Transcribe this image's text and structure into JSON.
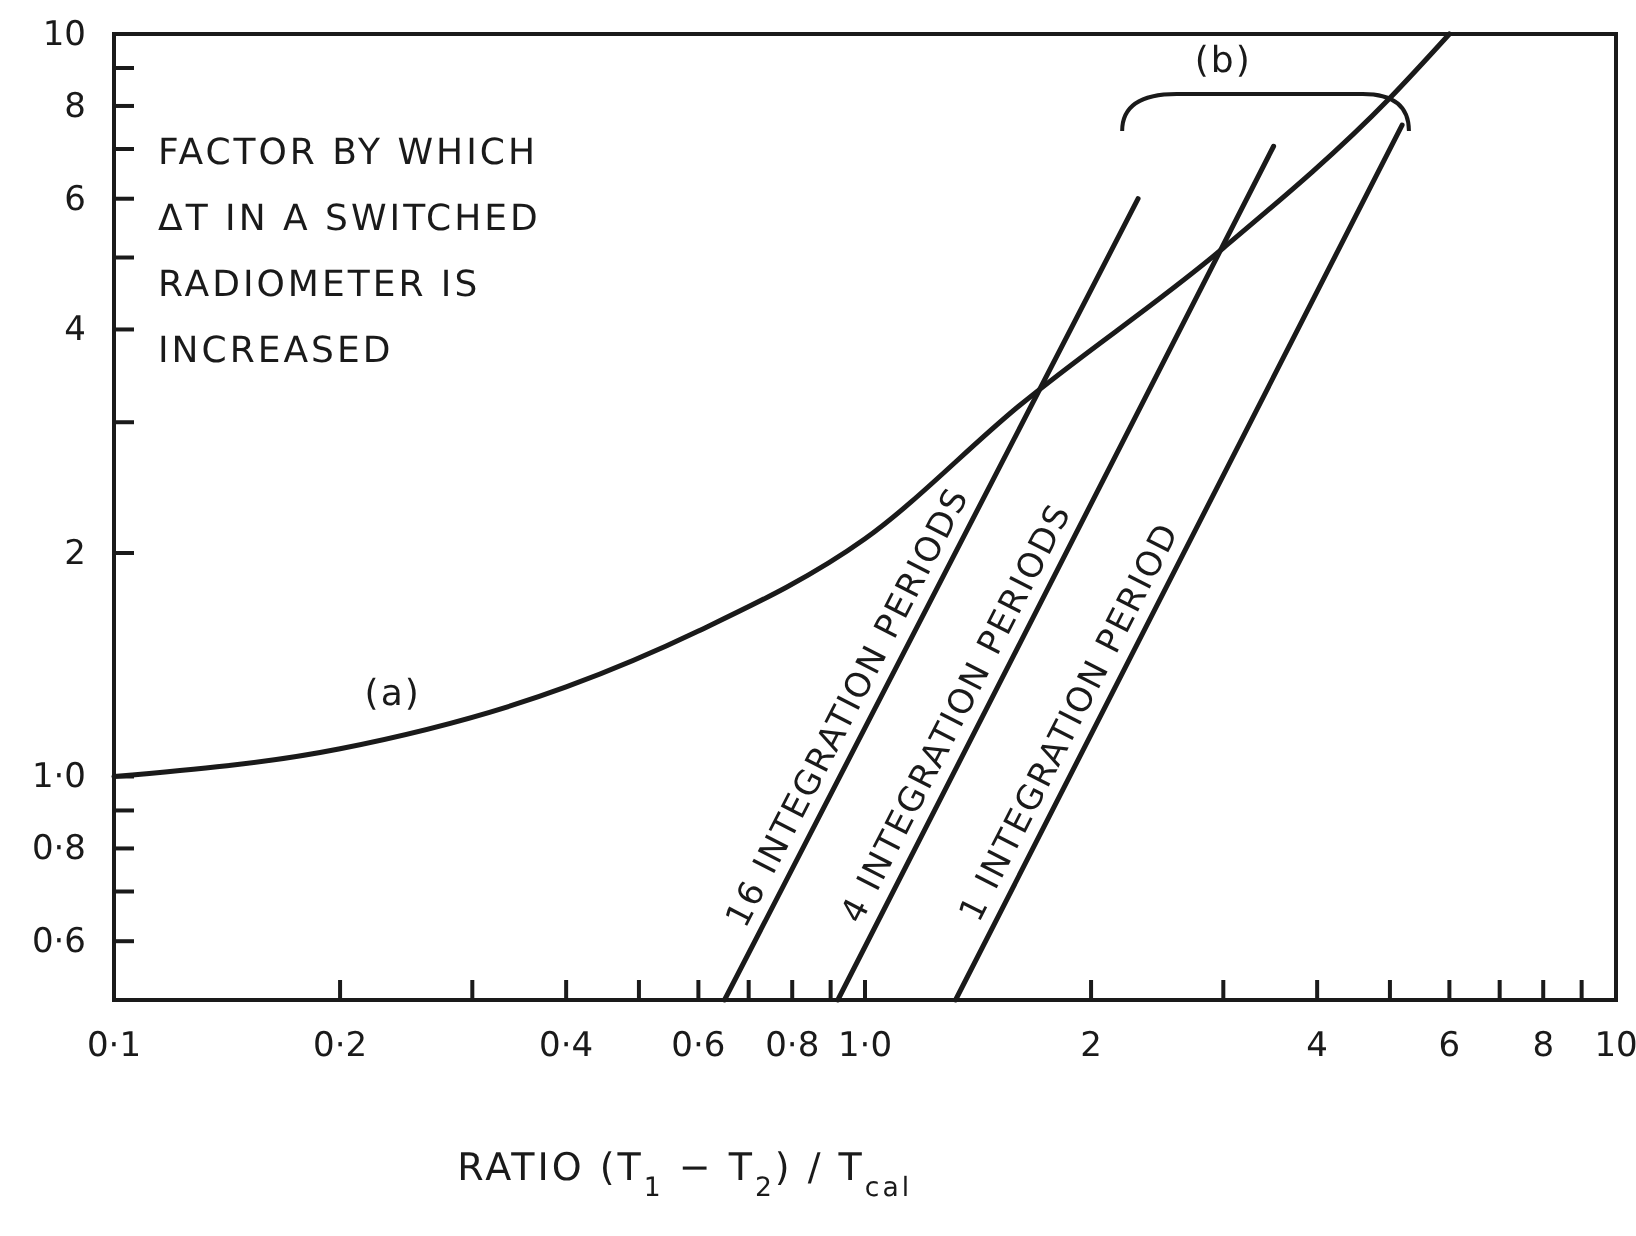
{
  "chart_data": {
    "type": "line",
    "ylabel": "FACTOR BY WHICH ΔT IN A SWITCHED RADIOMETER IS INCREASED",
    "xlabel": "RATIO (T$_{1}$ − T$_{2}$) / T$_{cal}$",
    "log": "xy",
    "grid": false,
    "legend": false,
    "marker": "none",
    "line_style": "solid",
    "xlim": [
      0.1,
      10
    ],
    "ylim": [
      0.5,
      10
    ],
    "xticks": [
      {
        "value": 0.1,
        "label": "0·1"
      },
      {
        "value": 0.2,
        "label": "0·2"
      },
      {
        "value": 0.3,
        "label": null
      },
      {
        "value": 0.4,
        "label": "0·4"
      },
      {
        "value": 0.5,
        "label": null
      },
      {
        "value": 0.6,
        "label": "0·6"
      },
      {
        "value": 0.7,
        "label": null
      },
      {
        "value": 0.8,
        "label": "0·8"
      },
      {
        "value": 0.9,
        "label": null
      },
      {
        "value": 1,
        "label": "1·0"
      },
      2,
      {
        "value": 3,
        "label": null
      },
      4,
      {
        "value": 5,
        "label": null
      },
      6,
      {
        "value": 7,
        "label": null
      },
      8,
      {
        "value": 9,
        "label": null
      },
      10
    ],
    "yticks": [
      {
        "value": 0.6,
        "label": "0·6"
      },
      {
        "value": 0.7,
        "label": null
      },
      {
        "value": 0.8,
        "label": "0·8"
      },
      {
        "value": 0.9,
        "label": null
      },
      {
        "value": 1,
        "label": "1·0"
      },
      2,
      {
        "value": 3,
        "label": null
      },
      4,
      {
        "value": 5,
        "label": null
      },
      6,
      {
        "value": 7,
        "label": null
      },
      8,
      {
        "value": 9,
        "label": null
      },
      10
    ],
    "series": [
      {
        "color": "#1a1a1a",
        "x": [
          0.1,
          0.2,
          0.4,
          0.6,
          1,
          1.6,
          3,
          5,
          6
        ],
        "values": [
          1.0,
          1.09,
          1.32,
          1.57,
          2.09,
          3.15,
          5.15,
          8.2,
          10
        ]
      },
      {
        "name": "16 INTEGRATION PERIODS",
        "color": "#1a1a1a",
        "x": [
          0.65,
          2.31
        ],
        "values": [
          0.5,
          6.0
        ]
      },
      {
        "name": "4 INTEGRATION PERIODS",
        "color": "#1a1a1a",
        "x": [
          0.92,
          3.5
        ],
        "values": [
          0.5,
          7.06
        ]
      },
      {
        "name": "1 INTEGRATION PERIOD",
        "color": "#1a1a1a",
        "x": [
          1.32,
          5.19
        ],
        "values": [
          0.5,
          7.54
        ]
      }
    ],
    "annotations": [
      "(a)",
      "(b)"
    ]
  }
}
